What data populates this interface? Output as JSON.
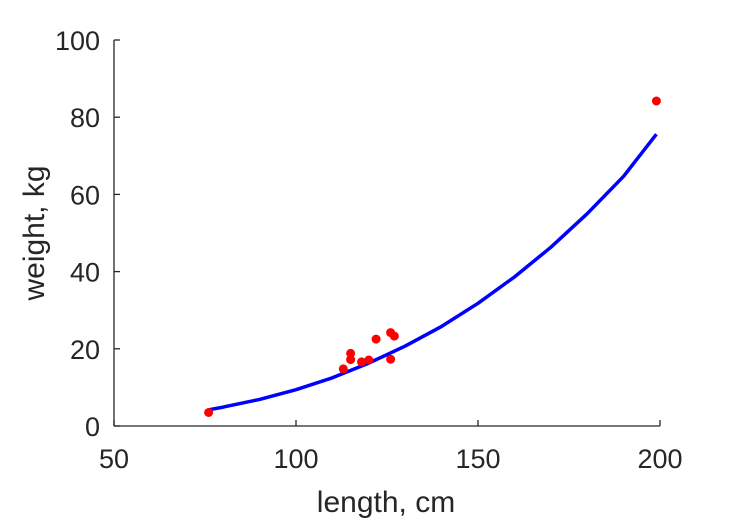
{
  "chart_data": {
    "type": "scatter",
    "title": "",
    "xlabel": "length, cm",
    "ylabel": "weight, kg",
    "xlim": [
      50,
      200
    ],
    "ylim": [
      0,
      100
    ],
    "x_ticks": [
      50,
      100,
      150,
      200
    ],
    "y_ticks": [
      0,
      20,
      40,
      60,
      80,
      100
    ],
    "x_tick_labels": [
      "50",
      "100",
      "150",
      "200"
    ],
    "y_tick_labels": [
      "0",
      "20",
      "40",
      "60",
      "80",
      "100"
    ],
    "grid": false,
    "box": false,
    "colors": {
      "points": "#ff0000",
      "fit_line": "#0000ff",
      "axes": "#262626"
    },
    "series": [
      {
        "kind": "scatter",
        "x": [
          76,
          113,
          115,
          115,
          118,
          120,
          122,
          126,
          126,
          127,
          199
        ],
        "y": [
          3.5,
          14.8,
          17.2,
          18.8,
          16.6,
          17.1,
          22.5,
          24.2,
          17.3,
          23.3,
          84.2
        ]
      },
      {
        "kind": "line",
        "x": [
          76,
          80,
          90,
          100,
          110,
          120,
          130,
          140,
          150,
          160,
          170,
          180,
          190,
          199
        ],
        "y": [
          4.2,
          4.9,
          6.9,
          9.4,
          12.5,
          16.3,
          20.7,
          25.8,
          31.8,
          38.6,
          46.3,
          55.0,
          64.7,
          75.6
        ]
      }
    ]
  }
}
